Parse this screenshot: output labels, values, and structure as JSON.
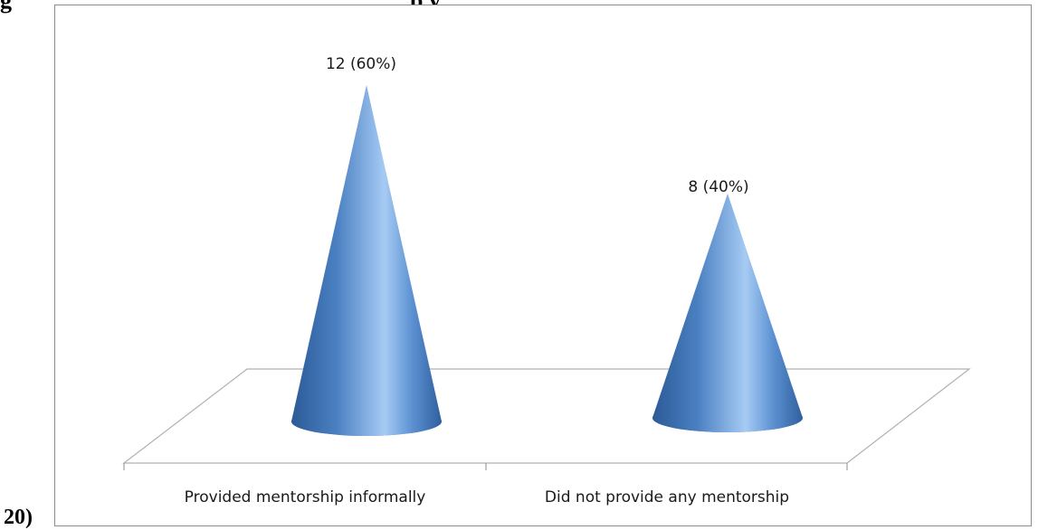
{
  "figure": {
    "caption_top_fragment": "g",
    "caption_top_fragment2": "p y",
    "caption_bottom_fragment": "20)"
  },
  "chart_data": {
    "type": "bar",
    "shape": "cone",
    "categories": [
      "Provided mentorship informally",
      "Did not provide any mentorship"
    ],
    "values": [
      12,
      8
    ],
    "percentages": [
      60,
      40
    ],
    "data_labels": [
      "12 (60%)",
      "8  (40%)"
    ],
    "ylim": [
      0,
      12
    ],
    "grid": false,
    "legend": "none",
    "colors": {
      "cone_dark": "#2f5f9e",
      "cone_mid": "#4f86c6",
      "cone_light": "#9cc3f0",
      "floor_line": "#b0b0b0",
      "frame": "#8c8c8c"
    }
  }
}
